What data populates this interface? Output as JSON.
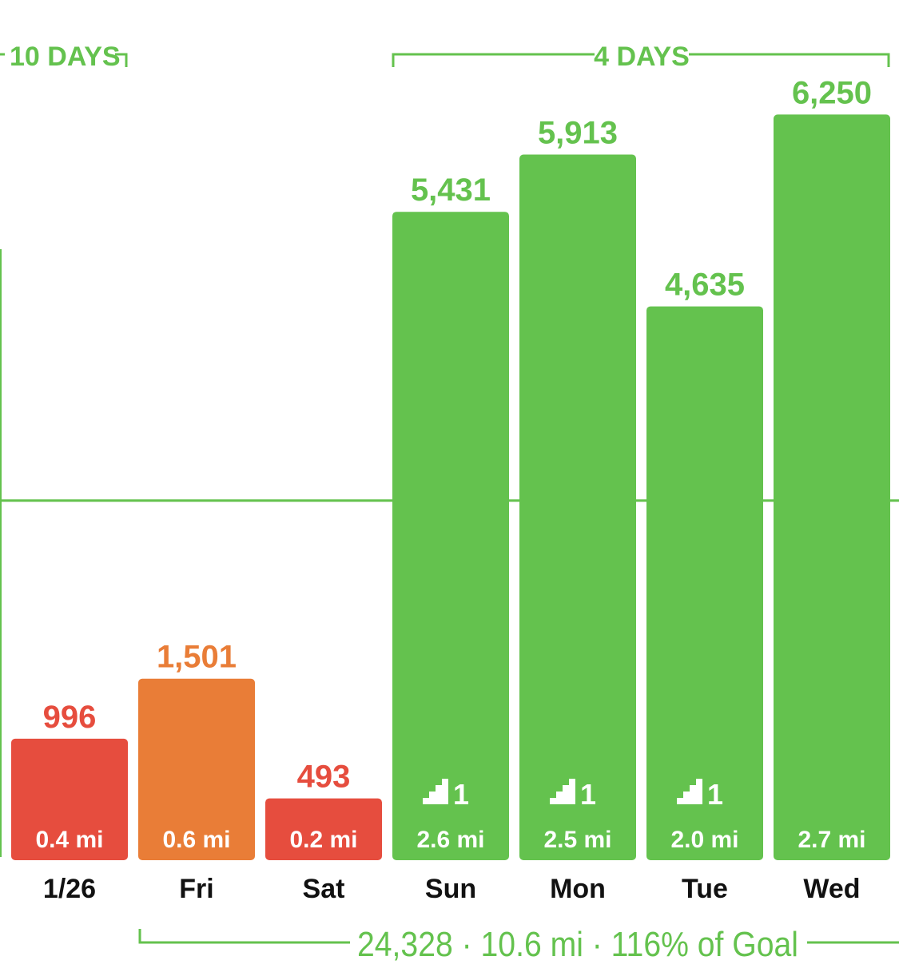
{
  "colors": {
    "green": "#64c24e",
    "red": "#e64d3e",
    "orange": "#e97d37",
    "text_dark": "#111111",
    "white": "#ffffff"
  },
  "streaks": [
    {
      "label": "10 DAYS",
      "color": "#64c24e"
    },
    {
      "label": "4 DAYS",
      "color": "#64c24e"
    }
  ],
  "summary": {
    "text": "24,328 · 10.6 mi · 116% of Goal",
    "color": "#64c24e"
  },
  "chart_data": {
    "type": "bar",
    "categories": [
      "1/26",
      "Fri",
      "Sat",
      "Sun",
      "Mon",
      "Tue",
      "Wed"
    ],
    "values": [
      996,
      1501,
      493,
      5431,
      5913,
      4635,
      6250
    ],
    "value_labels": [
      "996",
      "1,501",
      "493",
      "5,431",
      "5,913",
      "4,635",
      "6,250"
    ],
    "distances": [
      "0.4 mi",
      "0.6 mi",
      "0.2 mi",
      "2.6 mi",
      "2.5 mi",
      "2.0 mi",
      "2.7 mi"
    ],
    "bar_colors": [
      "#e64d3e",
      "#e97d37",
      "#e64d3e",
      "#64c24e",
      "#64c24e",
      "#64c24e",
      "#64c24e"
    ],
    "stairs": [
      null,
      null,
      null,
      "1",
      "1",
      "1",
      null
    ],
    "goal_line": 3000,
    "ylim": [
      0,
      6600
    ],
    "grid": false
  }
}
